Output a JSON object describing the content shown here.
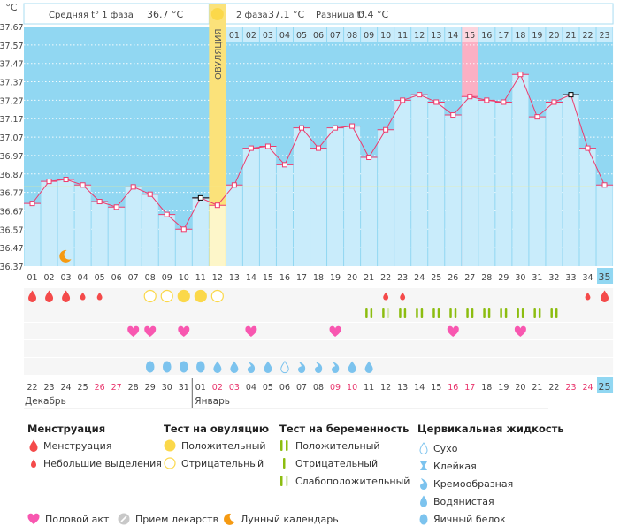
{
  "header": {
    "unit": "°C",
    "phase1_avg": "Средняя t° 1 фаза",
    "phase1_value": "36.7 °C",
    "phase2_label": "2 фаза",
    "phase2_value": "37.1 °C",
    "diff_label": "Разница t°",
    "diff_value": "0.4 °C",
    "ovulation_label": "ОВУЛЯЦИЯ"
  },
  "colors": {
    "plot_bg": "#91d7f2",
    "bar": "#c9ecfb",
    "line": "#ee3a6c",
    "ovulation_band": "#fbe27a",
    "coverline": "#f6e98a",
    "highlight_day": "#fbb0c4",
    "menstruation": "#f44a4a",
    "ov_test": "#fbd84a",
    "pregnancy": "#8cbd10",
    "heart": "#f857b0",
    "cervical": "#7cc3ee",
    "weekend": "#e8336b"
  },
  "chart_data": {
    "type": "line",
    "ylabel": "°C",
    "ylim": [
      36.37,
      37.67
    ],
    "yticks": [
      "37.67",
      "37.57",
      "37.47",
      "37.37",
      "37.27",
      "37.17",
      "37.07",
      "36.97",
      "36.87",
      "36.77",
      "36.67",
      "36.57",
      "36.47",
      "36.37"
    ],
    "cycle_days": [
      "01",
      "02",
      "03",
      "04",
      "05",
      "06",
      "07",
      "08",
      "09",
      "10",
      "11",
      "12",
      "13",
      "14",
      "15",
      "16",
      "17",
      "18",
      "19",
      "20",
      "21",
      "22",
      "23",
      "24",
      "25",
      "26",
      "27",
      "28",
      "29",
      "30",
      "31",
      "32",
      "33",
      "34",
      "35"
    ],
    "temperatures": [
      36.71,
      36.83,
      36.84,
      36.81,
      36.72,
      36.69,
      36.8,
      36.76,
      36.65,
      36.57,
      36.74,
      36.7,
      36.81,
      37.01,
      37.02,
      36.92,
      37.12,
      37.01,
      37.12,
      37.13,
      36.96,
      37.11,
      37.27,
      37.3,
      37.26,
      37.19,
      37.29,
      37.27,
      37.26,
      37.41,
      37.18,
      37.26,
      37.3,
      37.01,
      36.81
    ],
    "excluded_days": [
      11,
      33
    ],
    "coverline": 36.8,
    "ovulation_day": 12,
    "phase2_days": [
      "01",
      "02",
      "03",
      "04",
      "05",
      "06",
      "07",
      "08",
      "09",
      "10",
      "11",
      "12",
      "13",
      "14",
      "15",
      "16",
      "17",
      "18",
      "19",
      "20",
      "21",
      "22",
      "23"
    ],
    "highlighted_phase2_day": "15",
    "moon_day": 3,
    "current_day": 35,
    "grid": true
  },
  "calendar": {
    "dates": [
      "22",
      "23",
      "24",
      "25",
      "26",
      "27",
      "28",
      "29",
      "30",
      "31",
      "01",
      "02",
      "03",
      "04",
      "05",
      "06",
      "07",
      "08",
      "09",
      "10",
      "11",
      "12",
      "13",
      "14",
      "15",
      "16",
      "17",
      "18",
      "19",
      "20",
      "21",
      "22",
      "23",
      "24",
      "25"
    ],
    "weekend_days": [
      5,
      6,
      12,
      13,
      19,
      20,
      26,
      27,
      33,
      34
    ],
    "months": [
      "Декабрь",
      "Январь"
    ]
  },
  "rows": {
    "menstruation": [
      {
        "day": 1,
        "type": "heavy"
      },
      {
        "day": 2,
        "type": "heavy"
      },
      {
        "day": 3,
        "type": "heavy"
      },
      {
        "day": 4,
        "type": "light"
      },
      {
        "day": 5,
        "type": "light"
      },
      {
        "day": 22,
        "type": "light"
      },
      {
        "day": 23,
        "type": "light"
      },
      {
        "day": 34,
        "type": "light"
      },
      {
        "day": 35,
        "type": "heavy"
      }
    ],
    "ovulation_test": [
      {
        "day": 8,
        "type": "negative"
      },
      {
        "day": 9,
        "type": "negative"
      },
      {
        "day": 10,
        "type": "positive"
      },
      {
        "day": 11,
        "type": "positive"
      },
      {
        "day": 12,
        "type": "negative"
      }
    ],
    "pregnancy_test": [
      {
        "day": 21,
        "type": "positive"
      },
      {
        "day": 22,
        "type": "weak"
      },
      {
        "day": 23,
        "type": "positive"
      },
      {
        "day": 24,
        "type": "positive"
      },
      {
        "day": 25,
        "type": "positive"
      },
      {
        "day": 26,
        "type": "positive"
      },
      {
        "day": 27,
        "type": "positive"
      },
      {
        "day": 28,
        "type": "positive"
      },
      {
        "day": 29,
        "type": "positive"
      },
      {
        "day": 30,
        "type": "positive"
      },
      {
        "day": 31,
        "type": "positive"
      },
      {
        "day": 32,
        "type": "positive"
      }
    ],
    "intercourse": [
      7,
      8,
      10,
      14,
      19,
      26,
      30
    ],
    "cervical": [
      {
        "day": 8,
        "type": "eggwhite"
      },
      {
        "day": 9,
        "type": "eggwhite"
      },
      {
        "day": 10,
        "type": "eggwhite"
      },
      {
        "day": 11,
        "type": "eggwhite"
      },
      {
        "day": 12,
        "type": "watery"
      },
      {
        "day": 13,
        "type": "watery"
      },
      {
        "day": 14,
        "type": "creamy"
      },
      {
        "day": 15,
        "type": "watery"
      },
      {
        "day": 16,
        "type": "dry"
      },
      {
        "day": 17,
        "type": "creamy"
      },
      {
        "day": 18,
        "type": "creamy"
      },
      {
        "day": 19,
        "type": "creamy"
      },
      {
        "day": 20,
        "type": "watery"
      },
      {
        "day": 21,
        "type": "watery"
      }
    ]
  },
  "legend": {
    "menstruation": {
      "title": "Менструация",
      "items": [
        "Менструация",
        "Небольшие выделения"
      ]
    },
    "ovulation_test": {
      "title": "Тест на овуляцию",
      "items": [
        "Положительный",
        "Отрицательный"
      ]
    },
    "pregnancy_test": {
      "title": "Тест на беременность",
      "items": [
        "Положительный",
        "Отрицательный",
        "Слабоположительный"
      ]
    },
    "cervical": {
      "title": "Цервикальная жидкость",
      "items": [
        "Сухо",
        "Клейкая",
        "Кремообразная",
        "Водянистая",
        "Яичный белок"
      ]
    },
    "other": [
      "Половой акт",
      "Прием лекарств",
      "Лунный календарь"
    ]
  }
}
